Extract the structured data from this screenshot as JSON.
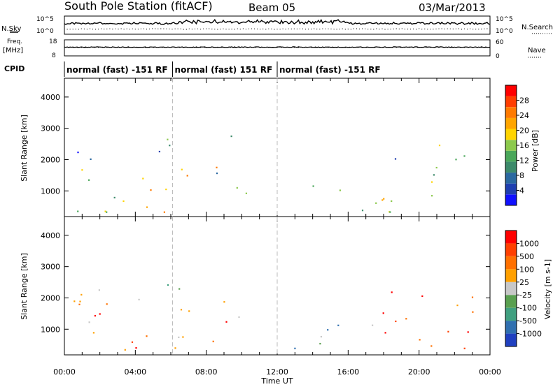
{
  "header": {
    "title": "South Pole Station (fitACF)",
    "beam": "Beam 05",
    "date": "03/Mar/2013"
  },
  "summary_panels": {
    "nsky_label": "N.Sky",
    "nsearch_label": "N.Search",
    "freq_label_1": "Freq.",
    "freq_label_2": "[MHz]",
    "nave_label": "Nave",
    "cpid_label": "CPID",
    "nsky_ticks": [
      "10^5",
      "10^0"
    ],
    "nsearch_ticks": [
      "10^5",
      "10^0"
    ],
    "freq_ticks": [
      "18",
      "8"
    ],
    "nave_ticks": [
      "60",
      "0"
    ]
  },
  "cpid_segments": [
    {
      "label": "normal (fast) -151 RF",
      "start_hour": 0,
      "end_hour": 6.1
    },
    {
      "label": "normal (fast) 151 RF",
      "start_hour": 6.1,
      "end_hour": 12.0
    },
    {
      "label": "normal (fast) -151 RF",
      "start_hour": 12.0,
      "end_hour": 24
    }
  ],
  "chart_data": [
    {
      "type": "heatmap",
      "name": "power",
      "xlabel": "",
      "ylabel": "Slant Range [km]",
      "ylim": [
        180,
        4600
      ],
      "xlim": [
        0,
        24
      ],
      "yticks": [
        "1000",
        "2000",
        "3000",
        "4000"
      ],
      "colorbar_label": "Power [dB]",
      "colorbar_ticks": [
        "4",
        "8",
        "12",
        "16",
        "20",
        "24",
        "28"
      ],
      "colorbar_colors": [
        "#1010ff",
        "#1f3fb0",
        "#2a68a0",
        "#3c8a6a",
        "#4aa75a",
        "#8cc94c",
        "#ffd400",
        "#ffa500",
        "#ff7a00",
        "#ff3d00",
        "#ff0000"
      ],
      "scatter_regions": [
        {
          "t": [
            0.5,
            10.5
          ],
          "r": [
            300,
            900
          ],
          "level": 0.55
        },
        {
          "t": [
            0.5,
            10.8
          ],
          "r": [
            800,
            1800
          ],
          "level": 0.5
        },
        {
          "t": [
            0.5,
            5.5
          ],
          "r": [
            1800,
            2400
          ],
          "level": 0.15
        },
        {
          "t": [
            5.5,
            9.5
          ],
          "r": [
            2100,
            2800
          ],
          "level": 0.25
        },
        {
          "t": [
            12,
            21.5
          ],
          "r": [
            300,
            1200
          ],
          "level": 0.55
        },
        {
          "t": [
            18.5,
            23.2
          ],
          "r": [
            1200,
            2600
          ],
          "level": 0.4
        }
      ]
    },
    {
      "type": "heatmap",
      "name": "velocity",
      "xlabel": "Time UT",
      "ylabel": "Slant Range [km]",
      "ylim": [
        180,
        4600
      ],
      "xlim": [
        0,
        24
      ],
      "yticks": [
        "1000",
        "2000",
        "3000",
        "4000"
      ],
      "xticks": [
        "00:00",
        "04:00",
        "08:00",
        "12:00",
        "16:00",
        "20:00",
        "00:00"
      ],
      "colorbar_label": "Velocity [m s-1]",
      "colorbar_ticks": [
        "1000",
        "500",
        "100",
        "25",
        "-25",
        "-100",
        "-500",
        "-1000"
      ],
      "colorbar_colors": [
        "#2040c0",
        "#3070b0",
        "#40a080",
        "#5aa050",
        "#c8c8c8",
        "#ffa000",
        "#ff7000",
        "#ff4000",
        "#ff0000"
      ],
      "scatter_regions": [
        {
          "t": [
            0.5,
            10.5
          ],
          "r": [
            300,
            900
          ],
          "level": 0.65
        },
        {
          "t": [
            0.5,
            10.8
          ],
          "r": [
            800,
            2000
          ],
          "level": 0.7
        },
        {
          "t": [
            0.5,
            5.5
          ],
          "r": [
            1800,
            2400
          ],
          "level": 0.45
        },
        {
          "t": [
            5.5,
            9.5
          ],
          "r": [
            2200,
            2700
          ],
          "level": 0.45
        },
        {
          "t": [
            12,
            17.5
          ],
          "r": [
            300,
            1200
          ],
          "level": 0.25
        },
        {
          "t": [
            17.5,
            23.2
          ],
          "r": [
            300,
            2500
          ],
          "level": 0.75
        }
      ]
    }
  ]
}
